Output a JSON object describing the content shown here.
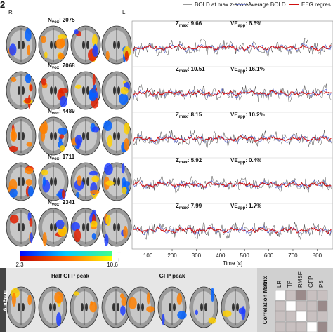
{
  "panel_label": "2",
  "side_left": "R",
  "side_right": "L",
  "legend": [
    "BOLD at max z-score",
    "Average BOLD",
    "EEG regres"
  ],
  "labels": {
    "nvox": {
      "base": "N",
      "sub": "vox"
    },
    "zmax": {
      "base": "Z",
      "sub": "max"
    },
    "ve": {
      "base": "VE",
      "sub": "app"
    },
    "sep": ":"
  },
  "rows": [
    {
      "nvox": "2075",
      "zmax": "9.66",
      "ve": "6.5%"
    },
    {
      "nvox": "7068",
      "zmax": "10.51",
      "ve": "16.1%"
    },
    {
      "nvox": "4489",
      "zmax": "8.15",
      "ve": "10.2%"
    },
    {
      "nvox": "1711",
      "zmax": "5.92",
      "ve": "0.4%"
    },
    {
      "nvox": "2341",
      "zmax": "7.99",
      "ve": "1.7%"
    }
  ],
  "time_axis": {
    "label": "Time [s]",
    "xlim": [
      40,
      860
    ],
    "xticks": [
      100,
      200,
      300,
      400,
      500,
      600,
      700,
      800
    ]
  },
  "colorbar": {
    "min": "2.3",
    "max": "10.6",
    "neg": "−",
    "pos": "+"
  },
  "bottom": {
    "side_label": "Imaging",
    "left_title": "Half GFP peak",
    "right_title": "GFP peak",
    "matrix_title": "Correlation Matrix",
    "matrix_cols": [
      "LR",
      "TP",
      "RMSF",
      "GFP",
      "PS"
    ]
  }
}
